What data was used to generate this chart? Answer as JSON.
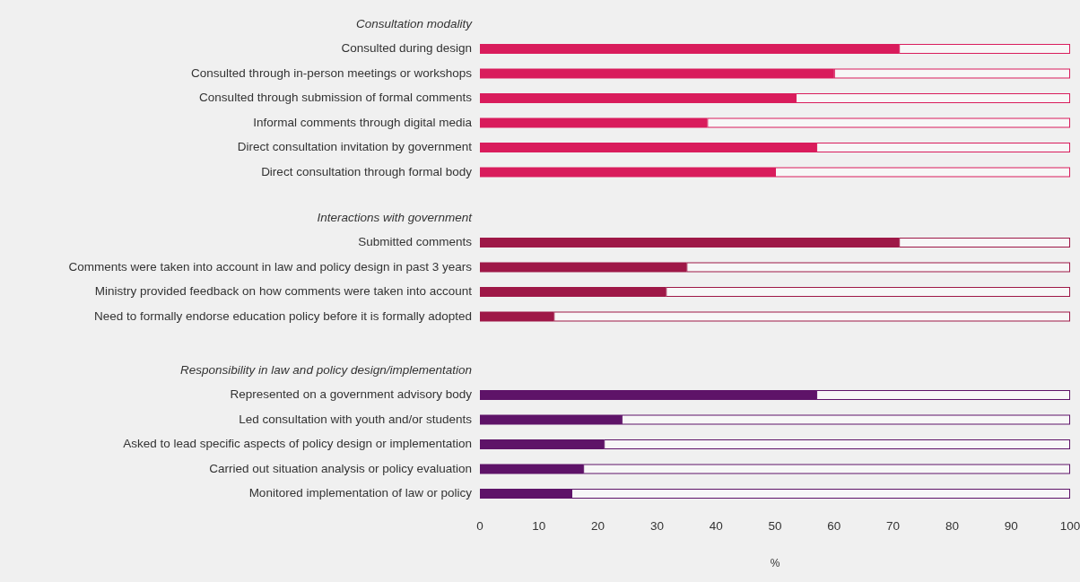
{
  "chart_data": [
    {
      "type": "bar",
      "orientation": "horizontal",
      "stacked": true,
      "title": "Consultation modality",
      "categories": [
        "Consulted during design",
        "Consulted through in-person meetings or workshops",
        "Consulted through submission of formal comments",
        "Informal comments through digital media",
        "Direct consultation invitation by government",
        "Direct consultation through formal body"
      ],
      "series": [
        {
          "color": "#d91c5c",
          "values": [
            71,
            60,
            53.5,
            38.5,
            57,
            50
          ]
        },
        {
          "color": "#f7f7f7",
          "values": [
            29,
            40,
            46.5,
            61.5,
            43,
            50
          ]
        }
      ],
      "xlim": [
        0,
        100
      ],
      "tick_labels": "y"
    },
    {
      "type": "bar",
      "orientation": "horizontal",
      "stacked": true,
      "title": "Interactions with government",
      "categories": [
        "Submitted comments",
        "Comments were taken into account in law and policy design in past 3 years",
        "Ministry provided feedback on how comments were taken into account",
        "Need to formally endorse education policy before it is formally adopted"
      ],
      "series": [
        {
          "color": "#9e1847",
          "values": [
            71,
            35,
            31.5,
            12.5
          ]
        },
        {
          "color": "#f7f7f7",
          "values": [
            29,
            65,
            68.5,
            87.5
          ]
        }
      ],
      "xlim": [
        0,
        100
      ],
      "tick_labels": "y"
    },
    {
      "type": "bar",
      "orientation": "horizontal",
      "stacked": true,
      "title": "Responsibility in law and policy design/implementation",
      "categories": [
        "Represented on a government advisory body",
        "Led consultation with youth and/or students",
        "Asked to lead specific aspects of policy design or implementation",
        "Carried out situation analysis or policy evaluation",
        "Monitored implementation of law or policy"
      ],
      "series": [
        {
          "color": "#5e1368",
          "values": [
            57,
            24,
            21,
            17.5,
            15.5
          ]
        },
        {
          "color": "#f7f7f7",
          "values": [
            43,
            76,
            79,
            82.5,
            84.5
          ]
        }
      ],
      "xlim": [
        0,
        100
      ],
      "xticks": [
        0,
        10,
        20,
        30,
        40,
        50,
        60,
        70,
        80,
        90,
        100
      ],
      "xlabel": "%"
    }
  ]
}
